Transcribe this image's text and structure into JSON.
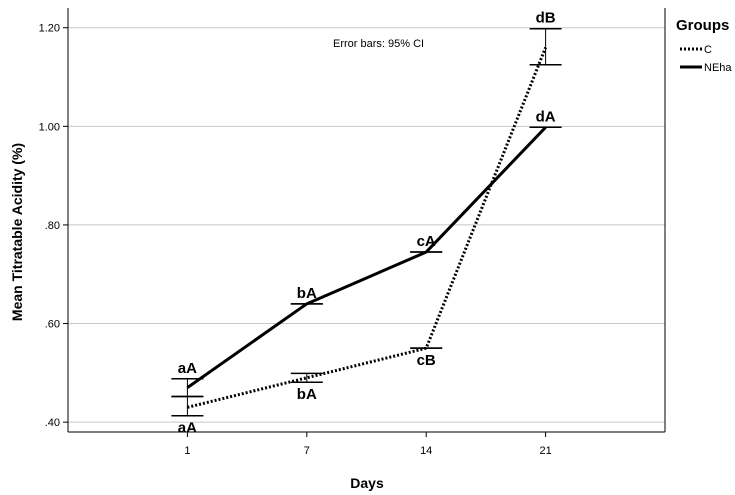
{
  "chart_data": {
    "type": "line",
    "xlabel": "Days",
    "ylabel": "Mean Titratable Acidity (%)",
    "categories": [
      "1",
      "7",
      "14",
      "21"
    ],
    "ylim": [
      0.38,
      1.24
    ],
    "yticks": [
      0.4,
      0.6,
      0.8,
      1.0,
      1.2
    ],
    "ytick_labels": [
      ".40",
      ".60",
      ".80",
      "1.00",
      "1.20"
    ],
    "grid": "horizontal",
    "annotation": "Error bars: 95% CI",
    "legend": {
      "title": "Groups",
      "placement": "right",
      "entries": [
        "C",
        "NEha"
      ]
    },
    "series": [
      {
        "name": "C",
        "style": "dotted",
        "color": "#000000",
        "values": [
          0.43,
          0.49,
          0.55,
          1.16
        ],
        "ci_low": [
          0.413,
          0.481,
          0.55,
          1.125
        ],
        "ci_high": [
          0.452,
          0.499,
          0.55,
          1.198
        ],
        "labels": [
          "aA",
          "bA",
          "cB",
          "dB"
        ],
        "label_position": [
          "below",
          "below",
          "below",
          "above"
        ]
      },
      {
        "name": "NEha",
        "style": "solid",
        "color": "#000000",
        "values": [
          0.47,
          0.64,
          0.745,
          0.998
        ],
        "ci_low": [
          0.452,
          0.64,
          0.745,
          0.998
        ],
        "ci_high": [
          0.488,
          0.64,
          0.745,
          0.998
        ],
        "labels": [
          "aA",
          "bA",
          "cA",
          "dA"
        ],
        "label_position": [
          "above",
          "above",
          "above",
          "above"
        ]
      }
    ]
  }
}
